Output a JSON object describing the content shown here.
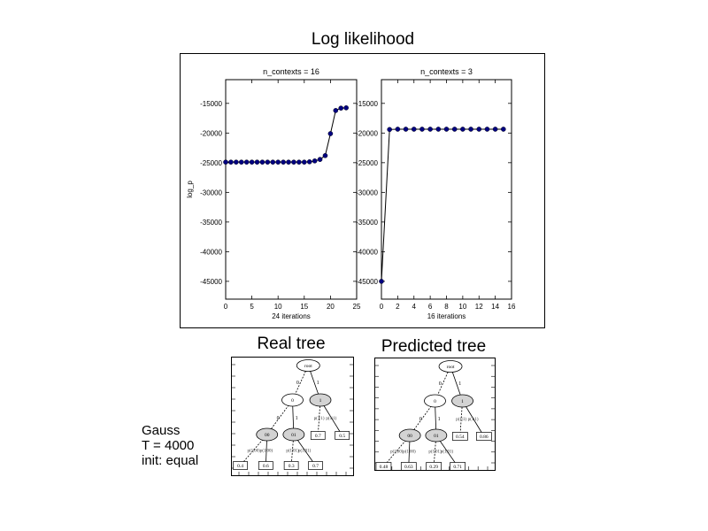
{
  "title": "Log likelihood",
  "chart_data": [
    {
      "type": "line",
      "title": "n_contexts = 16",
      "xlabel": "24 iterations",
      "ylabel": "log_p",
      "xlim": [
        0,
        25
      ],
      "ylim": [
        -48000,
        -11000
      ],
      "xticks": [
        "0",
        "5",
        "10",
        "15",
        "20",
        "25"
      ],
      "yticks": [
        "-15000",
        "-20000",
        "-25000",
        "-30000",
        "-35000",
        "-40000",
        "-45000"
      ],
      "x": [
        0,
        1,
        2,
        3,
        4,
        5,
        6,
        7,
        8,
        9,
        10,
        11,
        12,
        13,
        14,
        15,
        16,
        17,
        18,
        19,
        20,
        21,
        22,
        23
      ],
      "series": [
        {
          "values": [
            -24900,
            -24900,
            -24900,
            -24900,
            -24900,
            -24900,
            -24900,
            -24900,
            -24900,
            -24900,
            -24900,
            -24900,
            -24900,
            -24900,
            -24900,
            -24900,
            -24850,
            -24700,
            -24450,
            -23800,
            -20100,
            -16200,
            -15800,
            -15750
          ]
        }
      ],
      "color": "#000080"
    },
    {
      "type": "line",
      "title": "n_contexts = 3",
      "xlabel": "16 iterations",
      "ylabel": "",
      "xlim": [
        0,
        16
      ],
      "ylim": [
        -48000,
        -11000
      ],
      "xticks": [
        "0",
        "2",
        "4",
        "6",
        "8",
        "10",
        "12",
        "14",
        "16"
      ],
      "yticks": [
        "-15000",
        "-20000",
        "-25000",
        "-30000",
        "-35000",
        "-40000",
        "-45000"
      ],
      "x": [
        0,
        1,
        2,
        3,
        4,
        5,
        6,
        7,
        8,
        9,
        10,
        11,
        12,
        13,
        14,
        15
      ],
      "series": [
        {
          "values": [
            -45000,
            -19400,
            -19350,
            -19350,
            -19350,
            -19350,
            -19350,
            -19350,
            -19350,
            -19350,
            -19350,
            -19350,
            -19350,
            -19350,
            -19350,
            -19350
          ]
        }
      ],
      "color": "#000080"
    }
  ],
  "trees": {
    "real": {
      "title": "Real tree",
      "root": "root",
      "edge_labels": [
        "0",
        "1",
        "0",
        "1"
      ],
      "internal": [
        "0",
        "1",
        "00",
        "01"
      ],
      "leaf_probs": [
        "0.7",
        "0.5",
        "0.4",
        "0.6",
        "0.3",
        "0.7"
      ],
      "leaf_edge_labels": [
        "p(1|1)",
        "p(1|1)",
        "p(1|00)",
        "p(1|00)",
        "p(1|01)",
        "p(1|01)"
      ]
    },
    "predicted": {
      "title": "Predicted tree",
      "root": "root",
      "edge_labels": [
        "0",
        "1",
        "0",
        "1"
      ],
      "internal": [
        "0",
        "1",
        "00",
        "01"
      ],
      "leaf_probs": [
        "0.54",
        "0.86",
        "0.48",
        "0.63",
        "0.29",
        "0.71"
      ],
      "leaf_edge_labels": [
        "p(1|1)",
        "p(1|1)",
        "p(1|00)",
        "p(1|00)",
        "p(1|01)",
        "p(1|01)"
      ]
    }
  },
  "info": {
    "line1": "Gauss",
    "line2": "T = 4000",
    "line3": "init: equal"
  }
}
